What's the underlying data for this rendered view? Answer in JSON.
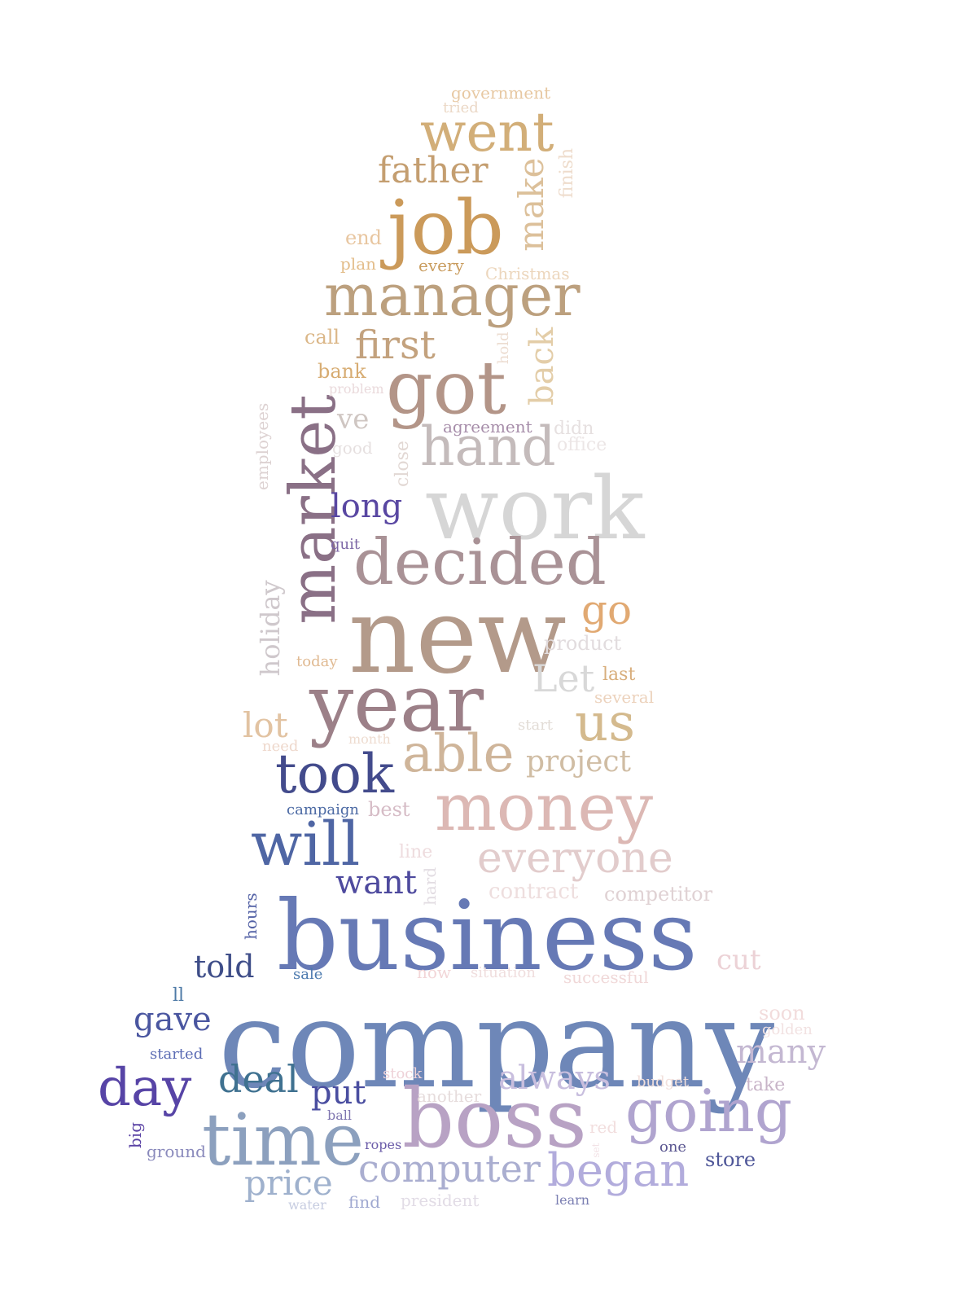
{
  "words": [
    {
      "text": "company",
      "color": "#6e87b8"
    },
    {
      "text": "business",
      "color": "#6679b5"
    },
    {
      "text": "new",
      "color": "#b39a8a"
    },
    {
      "text": "year",
      "color": "#9c8088"
    },
    {
      "text": "work",
      "color": "#d6d6d6"
    },
    {
      "text": "boss",
      "color": "#b8a2c4"
    },
    {
      "text": "job",
      "color": "#cb9a5a"
    },
    {
      "text": "got",
      "color": "#b39588"
    },
    {
      "text": "market",
      "color": "#8a7086"
    },
    {
      "text": "time",
      "color": "#8ca0be"
    },
    {
      "text": "money",
      "color": "#dcb8b4"
    },
    {
      "text": "decided",
      "color": "#a99296"
    },
    {
      "text": "manager",
      "color": "#bca07e"
    },
    {
      "text": "went",
      "color": "#d2ae78"
    },
    {
      "text": "going",
      "color": "#b0a4cf"
    },
    {
      "text": "hand",
      "color": "#c4bbbb"
    },
    {
      "text": "will",
      "color": "#4f66a4"
    },
    {
      "text": "took",
      "color": "#434b8c"
    },
    {
      "text": "able",
      "color": "#cfb59a"
    },
    {
      "text": "everyone",
      "color": "#e2cccc"
    },
    {
      "text": "us",
      "color": "#d4ba8e"
    },
    {
      "text": "day",
      "color": "#5744a6"
    },
    {
      "text": "began",
      "color": "#b2acdc"
    },
    {
      "text": "father",
      "color": "#c49e70"
    },
    {
      "text": "first",
      "color": "#c3a27e"
    },
    {
      "text": "make",
      "color": "#dcc09a"
    },
    {
      "text": "back",
      "color": "#e3cda8"
    },
    {
      "text": "computer",
      "color": "#aaaed0"
    },
    {
      "text": "go",
      "color": "#e1a972"
    },
    {
      "text": "Let",
      "color": "#d8d8d8"
    },
    {
      "text": "project",
      "color": "#d0bda4"
    },
    {
      "text": "deal",
      "color": "#3f7190"
    },
    {
      "text": "price",
      "color": "#9fb1cd"
    },
    {
      "text": "always",
      "color": "#c8bede"
    },
    {
      "text": "many",
      "color": "#c4b8d2"
    },
    {
      "text": "told",
      "color": "#3e4d88"
    },
    {
      "text": "gave",
      "color": "#4a56a0"
    },
    {
      "text": "put",
      "color": "#4a4ea0"
    },
    {
      "text": "lot",
      "color": "#e2c3a2"
    },
    {
      "text": "long",
      "color": "#5947a2"
    },
    {
      "text": "holiday",
      "color": "#cfc8cc"
    },
    {
      "text": "want",
      "color": "#4e4a9e"
    },
    {
      "text": "cut",
      "color": "#ecd2d6"
    },
    {
      "text": "ve",
      "color": "#cfc6c2"
    },
    {
      "text": "employees",
      "color": "#ddd2d2"
    },
    {
      "text": "close",
      "color": "#e2d8d4"
    },
    {
      "text": "product",
      "color": "#e2dcde"
    },
    {
      "text": "competitor",
      "color": "#e0d2d4"
    },
    {
      "text": "contract",
      "color": "#eedede"
    },
    {
      "text": "end",
      "color": "#e8c6a0"
    },
    {
      "text": "call",
      "color": "#dbb788"
    },
    {
      "text": "bank",
      "color": "#d7ac72"
    },
    {
      "text": "plan",
      "color": "#e3bd8a"
    },
    {
      "text": "every",
      "color": "#c99c5e"
    },
    {
      "text": "Christmas",
      "color": "#ecd6bc"
    },
    {
      "text": "government",
      "color": "#e7c8a2"
    },
    {
      "text": "tried",
      "color": "#ebd8c6"
    },
    {
      "text": "finish",
      "color": "#eedccc"
    },
    {
      "text": "hold",
      "color": "#ecdcd0"
    },
    {
      "text": "problem",
      "color": "#eadadc"
    },
    {
      "text": "agreement",
      "color": "#a78eaa"
    },
    {
      "text": "didn",
      "color": "#e6e0e0"
    },
    {
      "text": "office",
      "color": "#ece6e6"
    },
    {
      "text": "good",
      "color": "#e6e0e0"
    },
    {
      "text": "quit",
      "color": "#7c66a6"
    },
    {
      "text": "today",
      "color": "#e0ba92"
    },
    {
      "text": "last",
      "color": "#d8ae7c"
    },
    {
      "text": "several",
      "color": "#ecd2bc"
    },
    {
      "text": "start",
      "color": "#e2dcd6"
    },
    {
      "text": "need",
      "color": "#eed8cc"
    },
    {
      "text": "month",
      "color": "#eedcd0"
    },
    {
      "text": "campaign",
      "color": "#4c6aa4"
    },
    {
      "text": "best",
      "color": "#d6bcc6"
    },
    {
      "text": "line",
      "color": "#eedcde"
    },
    {
      "text": "hard",
      "color": "#e2dce2"
    },
    {
      "text": "hours",
      "color": "#5462a6"
    },
    {
      "text": "sale",
      "color": "#4b79ae"
    },
    {
      "text": "now",
      "color": "#f2d6d8"
    },
    {
      "text": "situation",
      "color": "#f0dede"
    },
    {
      "text": "successful",
      "color": "#f0d8d8"
    },
    {
      "text": "ll",
      "color": "#4e7aa6"
    },
    {
      "text": "soon",
      "color": "#f2dcdc"
    },
    {
      "text": "golden",
      "color": "#f2e2e2"
    },
    {
      "text": "started",
      "color": "#5b6cb4"
    },
    {
      "text": "stock",
      "color": "#eed2d8"
    },
    {
      "text": "another",
      "color": "#e6dcdc"
    },
    {
      "text": "budget",
      "color": "#f2e0dc"
    },
    {
      "text": "take",
      "color": "#c8b4c8"
    },
    {
      "text": "big",
      "color": "#5a42a4"
    },
    {
      "text": "ground",
      "color": "#8a8abc"
    },
    {
      "text": "ball",
      "color": "#8077b0"
    },
    {
      "text": "ropes",
      "color": "#6a5ba8"
    },
    {
      "text": "red",
      "color": "#f2dede"
    },
    {
      "text": "set",
      "color": "#f2e2e6"
    },
    {
      "text": "one",
      "color": "#5a5690"
    },
    {
      "text": "store",
      "color": "#4e5698"
    },
    {
      "text": "water",
      "color": "#c6cce0"
    },
    {
      "text": "find",
      "color": "#9fa8d0"
    },
    {
      "text": "president",
      "color": "#e2dce6"
    },
    {
      "text": "learn",
      "color": "#7a7eb2"
    }
  ]
}
